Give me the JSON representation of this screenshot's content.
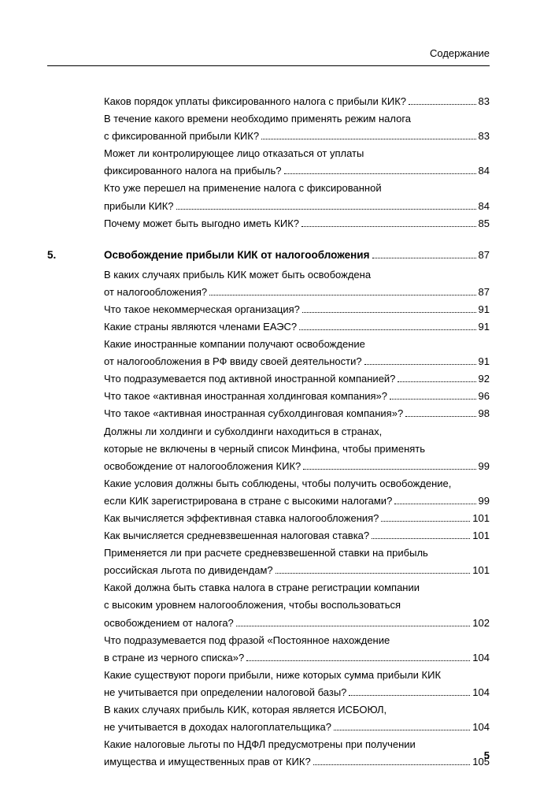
{
  "header": {
    "label": "Содержание"
  },
  "footer": {
    "page": "5"
  },
  "entries": [
    {
      "type": "item",
      "lines": [
        "Каков порядок уплаты фиксированного налога с прибыли КИК?"
      ],
      "page": "83"
    },
    {
      "type": "item",
      "lines": [
        "В течение какого времени необходимо применять режим налога",
        "с фиксированной прибыли КИК?"
      ],
      "page": "83"
    },
    {
      "type": "item",
      "lines": [
        "Может ли контролирующее лицо отказаться от уплаты",
        "фиксированного налога на прибыль?"
      ],
      "page": "84"
    },
    {
      "type": "item",
      "lines": [
        "Кто уже перешел на применение налога с фиксированной",
        "прибыли КИК?"
      ],
      "page": "84"
    },
    {
      "type": "item",
      "lines": [
        "Почему может быть выгодно иметь КИК?"
      ],
      "page": "85"
    },
    {
      "type": "chapter",
      "num": "5.",
      "title": "Освобождение прибыли КИК от налогообложения",
      "page": "87"
    },
    {
      "type": "item",
      "lines": [
        "В каких случаях прибыль КИК может быть освобождена",
        "от налогообложения?"
      ],
      "page": "87"
    },
    {
      "type": "item",
      "lines": [
        "Что такое некоммерческая организация?"
      ],
      "page": "91"
    },
    {
      "type": "item",
      "lines": [
        "Какие страны являются членами ЕАЭС?"
      ],
      "page": "91"
    },
    {
      "type": "item",
      "lines": [
        "Какие иностранные компании получают освобождение",
        "от налогообложения в РФ ввиду своей деятельности?"
      ],
      "page": "91"
    },
    {
      "type": "item",
      "lines": [
        "Что подразумевается под активной иностранной компанией?"
      ],
      "page": "92"
    },
    {
      "type": "item",
      "lines": [
        "Что такое «активная иностранная холдинговая компания»?"
      ],
      "page": "96"
    },
    {
      "type": "item",
      "lines": [
        "Что такое «активная иностранная субхолдинговая компания»?"
      ],
      "page": "98"
    },
    {
      "type": "item",
      "lines": [
        "Должны ли холдинги и субхолдинги находиться в странах,",
        "которые не включены в черный список Минфина, чтобы применять",
        "освобождение от налогообложения КИК?"
      ],
      "page": "99"
    },
    {
      "type": "item",
      "lines": [
        "Какие условия должны быть соблюдены, чтобы получить освобождение,",
        "если КИК зарегистрирована в стране с высокими налогами?"
      ],
      "page": "99"
    },
    {
      "type": "item",
      "lines": [
        "Как вычисляется эффективная ставка налогообложения?"
      ],
      "page": "101"
    },
    {
      "type": "item",
      "lines": [
        "Как вычисляется средневзвешенная налоговая ставка?"
      ],
      "page": "101"
    },
    {
      "type": "item",
      "lines": [
        "Применяется ли при расчете средневзвешенной ставки на прибыль",
        "российская льгота по дивидендам?"
      ],
      "page": "101"
    },
    {
      "type": "item",
      "lines": [
        "Какой должна быть ставка налога в стране регистрации компании",
        "с высоким уровнем налогообложения, чтобы воспользоваться",
        "освобождением от налога?"
      ],
      "page": "102"
    },
    {
      "type": "item",
      "lines": [
        "Что подразумевается под фразой «Постоянное нахождение",
        "в стране из черного списка»?"
      ],
      "page": "104"
    },
    {
      "type": "item",
      "lines": [
        "Какие существуют пороги прибыли, ниже которых сумма прибыли КИК",
        "не учитывается при определении налоговой базы?"
      ],
      "page": "104"
    },
    {
      "type": "item",
      "lines": [
        "В каких случаях прибыль КИК, которая является ИСБОЮЛ,",
        "не учитывается в доходах налогоплательщика?"
      ],
      "page": "104"
    },
    {
      "type": "item",
      "lines": [
        "Какие налоговые льготы по НДФЛ предусмотрены при получении",
        "имущества и имущественных прав от КИК?"
      ],
      "page": "105"
    }
  ]
}
